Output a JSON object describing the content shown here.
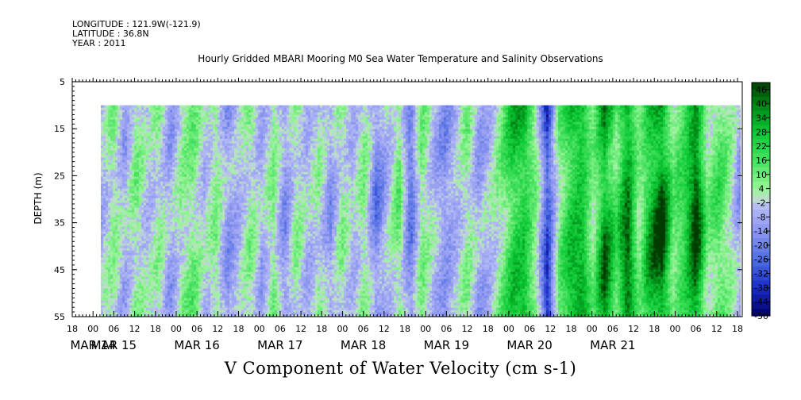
{
  "header": {
    "longitude": "LONGITUDE : 121.9W(-121.9)",
    "latitude": "LATITUDE : 36.8N",
    "year": "YEAR : 2011"
  },
  "chart_data": {
    "type": "heatmap",
    "title": "Hourly Gridded MBARI Mooring M0 Sea Water Temperature and Salinity Observations",
    "xlabel": "V Component of Water Velocity (cm s-1)",
    "ylabel": "DEPTH (m)",
    "y_axis": {
      "range": [
        5,
        55
      ],
      "inverted": true,
      "ticks": [
        5,
        15,
        25,
        35,
        45,
        55
      ],
      "data_top_depth": 10
    },
    "x_axis": {
      "hour_ticks": [
        "18",
        "00",
        "06",
        "12",
        "18",
        "00",
        "06",
        "12",
        "18",
        "00",
        "06",
        "12",
        "18",
        "00",
        "06",
        "12",
        "18",
        "00",
        "06",
        "12",
        "18",
        "00",
        "06",
        "12",
        "18",
        "00",
        "06",
        "12",
        "18",
        "00",
        "06",
        "12",
        "18"
      ],
      "date_labels": [
        "MAR 14",
        "MAR 15",
        "MAR 16",
        "MAR 17",
        "MAR 18",
        "MAR 19",
        "MAR 20",
        "MAR 21"
      ],
      "date_label_tick_index": [
        1,
        2,
        6,
        10,
        14,
        18,
        22,
        26
      ]
    },
    "colorbar": {
      "labels": [
        "46",
        "40",
        "34",
        "28",
        "22",
        "16",
        "10",
        "4",
        "-2",
        "-8",
        "-14",
        "-20",
        "-26",
        "-32",
        "-38",
        "-44",
        "-50"
      ],
      "min": -50,
      "max": 49,
      "step": 3
    },
    "time_profile": [
      -6,
      5,
      -8,
      6,
      -4,
      3,
      -10,
      4,
      8,
      -4,
      6,
      -12,
      -6,
      5,
      -8,
      7,
      -14,
      4,
      -6,
      2,
      -12,
      4,
      -6,
      6,
      -18,
      -5,
      10,
      -22,
      8,
      -4,
      -14,
      -6,
      6,
      -10,
      -4,
      8,
      24,
      26,
      6,
      -34,
      8,
      26,
      30,
      6,
      36,
      14,
      40,
      6,
      30,
      42,
      10,
      20,
      44,
      6,
      14,
      4,
      -14
    ]
  }
}
